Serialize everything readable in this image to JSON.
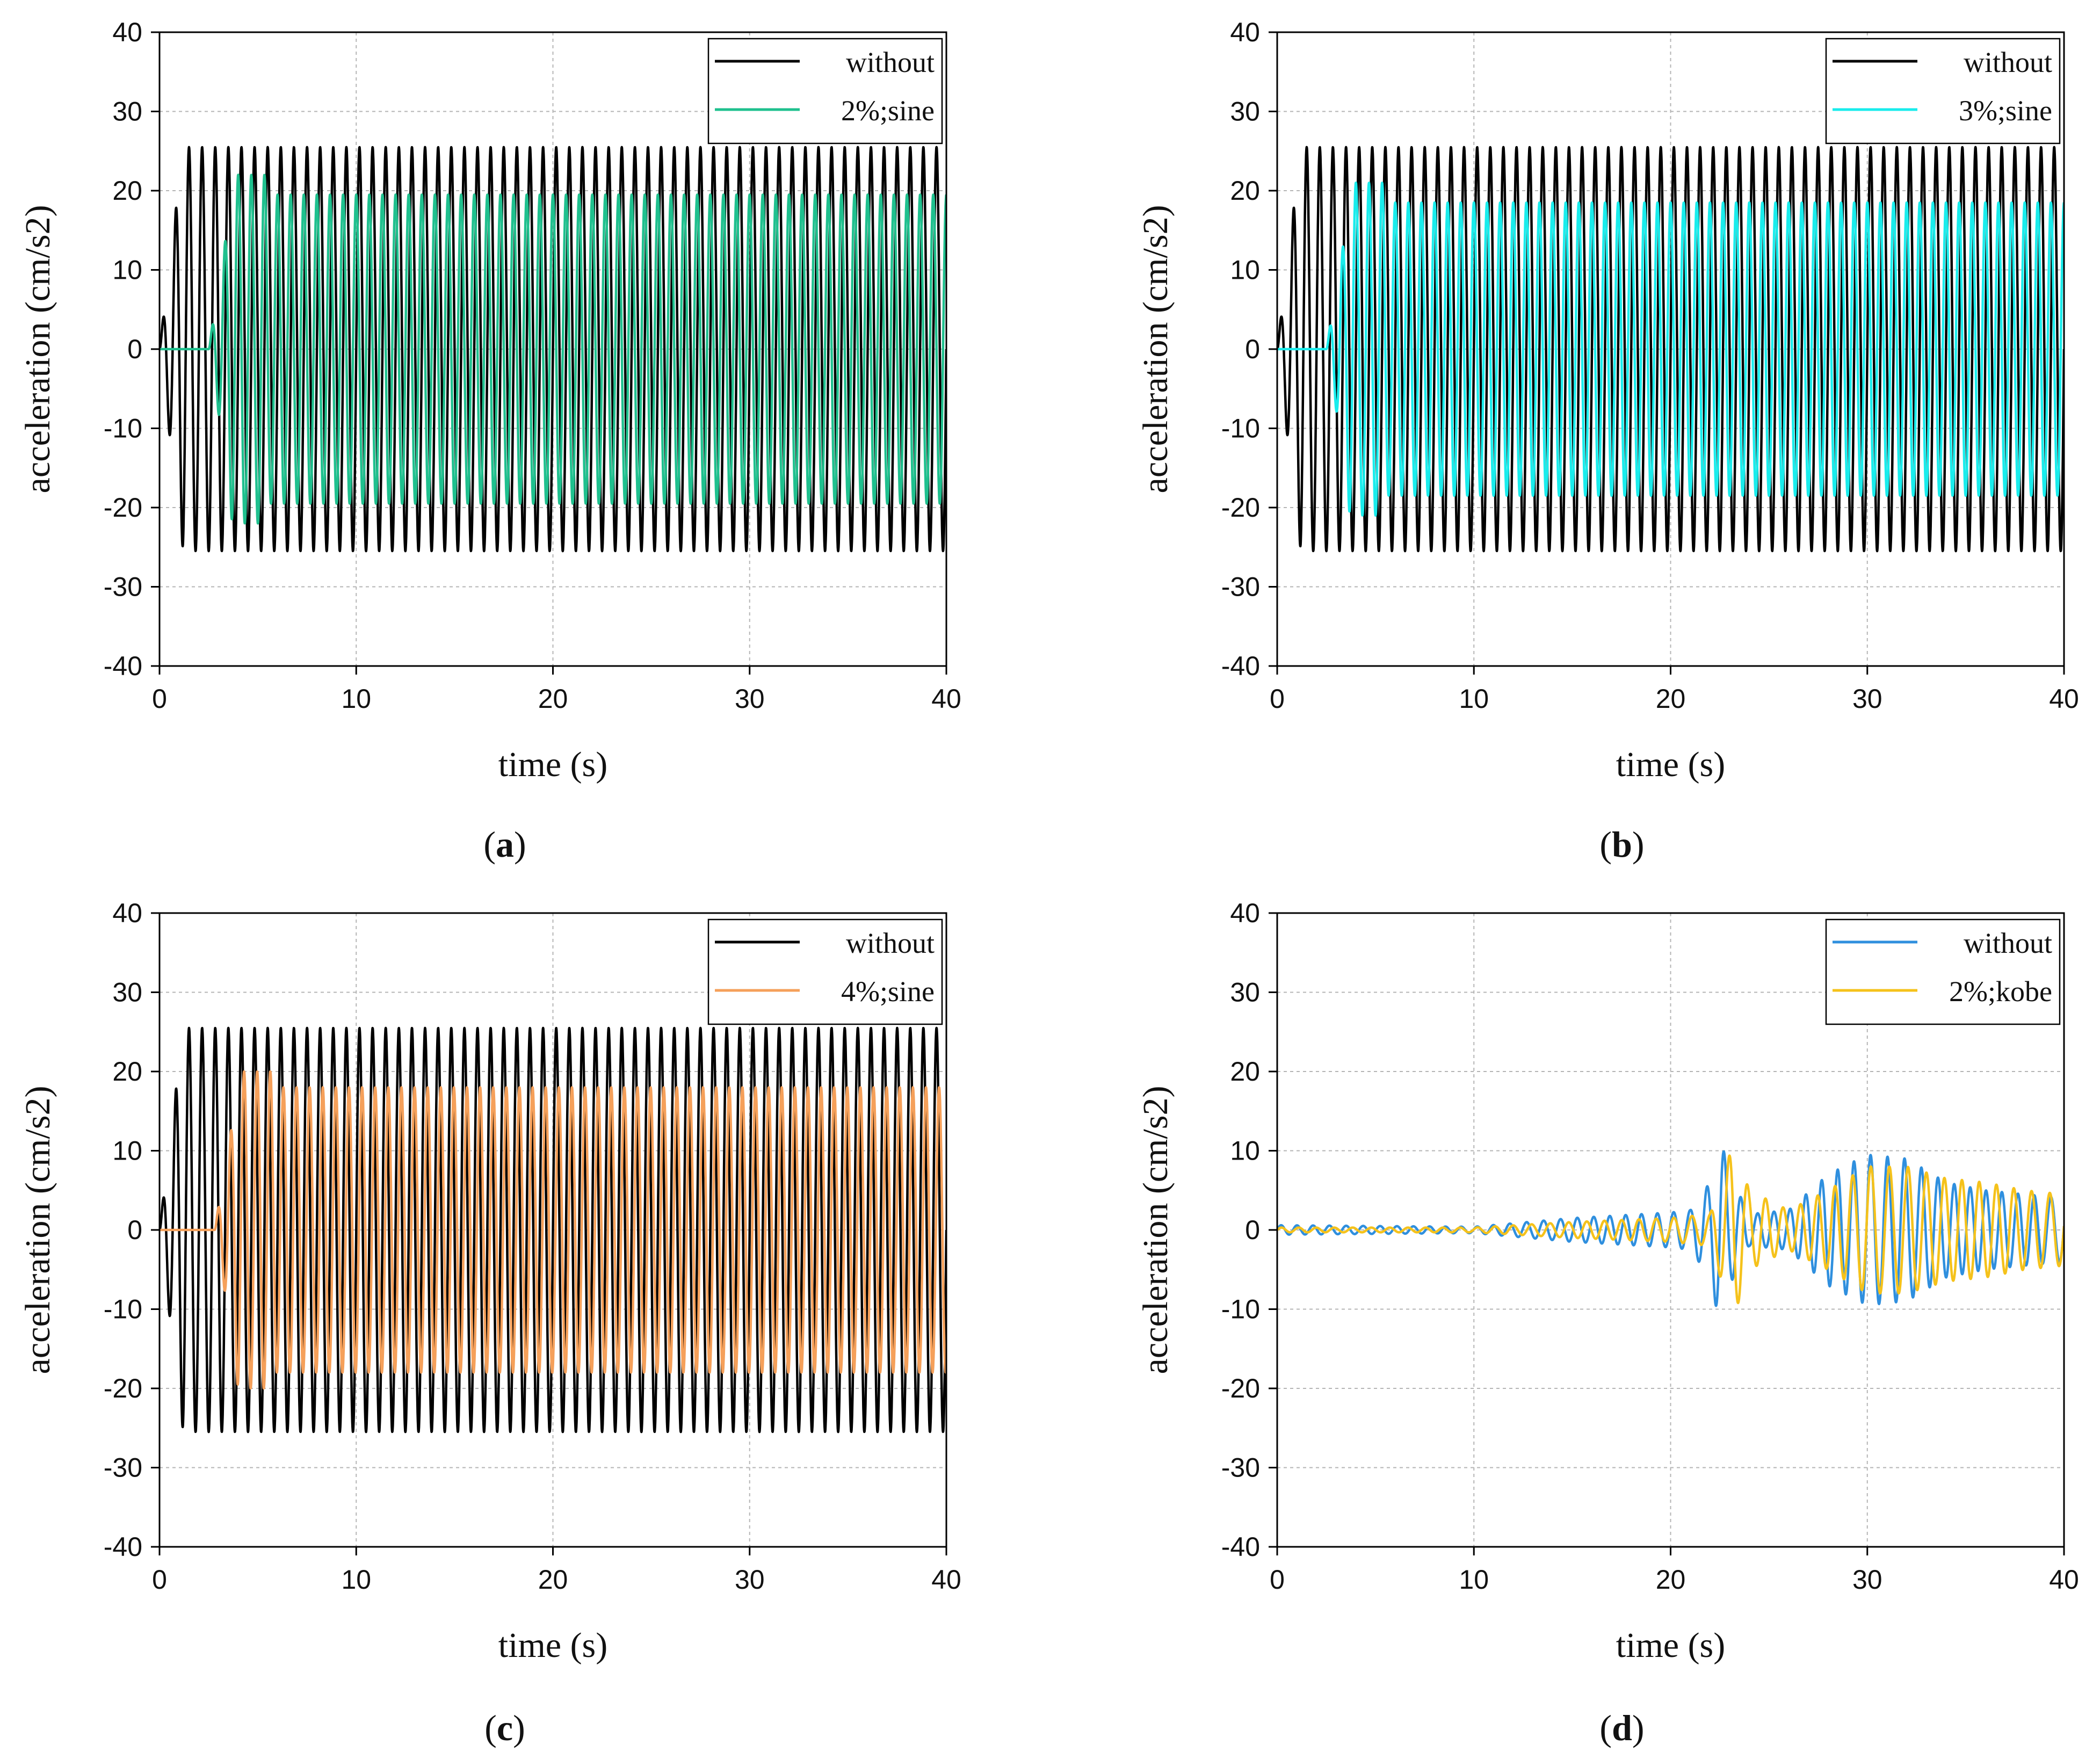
{
  "figure": {
    "colors": {
      "black": "#000000",
      "green": "#1fc08e",
      "cyan": "#19ecec",
      "orange": "#f5a05a",
      "blue": "#2f8fde",
      "yellow": "#f5c21b",
      "grid": "#b5b5b5"
    }
  },
  "chart_data": [
    {
      "id": "a",
      "type": "line",
      "panel_label": "a",
      "xlabel": "time (s)",
      "ylabel": "acceleration (cm/s2)",
      "xlim": [
        0,
        40
      ],
      "ylim": [
        -40,
        40
      ],
      "xticks": [
        0,
        10,
        20,
        30,
        40
      ],
      "yticks": [
        40,
        30,
        20,
        10,
        0,
        -10,
        -20,
        -30,
        -40
      ],
      "legend_position": "top-right",
      "grid": true,
      "series": [
        {
          "name": "without",
          "color": "#000000",
          "waveform": "sine",
          "amplitude": 25.5,
          "frequency_hz": 1.5,
          "onset_s": 0
        },
        {
          "name": "2%;sine",
          "color": "#1fc08e",
          "waveform": "sine",
          "amplitude": 19.5,
          "peak": 22,
          "frequency_hz": 1.5,
          "onset_s": 2.5
        }
      ]
    },
    {
      "id": "b",
      "type": "line",
      "panel_label": "b",
      "xlabel": "time (s)",
      "ylabel": "acceleration (cm/s2)",
      "xlim": [
        0,
        40
      ],
      "ylim": [
        -40,
        40
      ],
      "xticks": [
        0,
        10,
        20,
        30,
        40
      ],
      "yticks": [
        40,
        30,
        20,
        10,
        0,
        -10,
        -20,
        -30,
        -40
      ],
      "legend_position": "top-right",
      "grid": true,
      "series": [
        {
          "name": "without",
          "color": "#000000",
          "waveform": "sine",
          "amplitude": 25.5,
          "frequency_hz": 1.5,
          "onset_s": 0
        },
        {
          "name": "3%;sine",
          "color": "#19ecec",
          "waveform": "sine",
          "amplitude": 18.5,
          "peak": 21,
          "frequency_hz": 1.5,
          "onset_s": 2.5
        }
      ]
    },
    {
      "id": "c",
      "type": "line",
      "panel_label": "c",
      "xlabel": "time (s)",
      "ylabel": "acceleration (cm/s2)",
      "xlim": [
        0,
        40
      ],
      "ylim": [
        -40,
        40
      ],
      "xticks": [
        0,
        10,
        20,
        30,
        40
      ],
      "yticks": [
        40,
        30,
        20,
        10,
        0,
        -10,
        -20,
        -30,
        -40
      ],
      "legend_position": "top-right",
      "grid": true,
      "series": [
        {
          "name": "without",
          "color": "#000000",
          "waveform": "sine",
          "amplitude": 25.5,
          "frequency_hz": 1.5,
          "onset_s": 0
        },
        {
          "name": "4%;sine",
          "color": "#f5a05a",
          "waveform": "sine",
          "amplitude": 18,
          "peak": 20,
          "frequency_hz": 1.5,
          "onset_s": 2.8
        }
      ]
    },
    {
      "id": "d",
      "type": "line",
      "panel_label": "d",
      "xlabel": "time (s)",
      "ylabel": "acceleration (cm/s2)",
      "xlim": [
        0,
        40
      ],
      "ylim": [
        -40,
        40
      ],
      "xticks": [
        0,
        10,
        20,
        30,
        40
      ],
      "yticks": [
        40,
        30,
        20,
        10,
        0,
        -10,
        -20,
        -30,
        -40
      ],
      "legend_position": "top-right",
      "grid": true,
      "series": [
        {
          "name": "without",
          "color": "#2f8fde",
          "waveform": "kobe",
          "frequency_hz": 1.2,
          "envelope": [
            [
              0,
              0.6
            ],
            [
              10,
              0.4
            ],
            [
              15,
              1.5
            ],
            [
              20,
              2.2
            ],
            [
              21,
              2.5
            ],
            [
              22,
              6
            ],
            [
              22.5,
              12
            ],
            [
              23,
              7
            ],
            [
              24,
              2
            ],
            [
              26,
              2.5
            ],
            [
              28,
              7
            ],
            [
              30,
              9.5
            ],
            [
              32,
              9
            ],
            [
              34,
              6
            ],
            [
              36,
              5
            ],
            [
              38,
              4.5
            ],
            [
              40,
              4
            ]
          ]
        },
        {
          "name": "2%;kobe",
          "color": "#f5c21b",
          "waveform": "kobe",
          "frequency_hz": 1.1,
          "envelope": [
            [
              0,
              0.3
            ],
            [
              10,
              0.3
            ],
            [
              15,
              1.0
            ],
            [
              20,
              1.5
            ],
            [
              22,
              2
            ],
            [
              22.8,
              8
            ],
            [
              23.2,
              11
            ],
            [
              24,
              5
            ],
            [
              26,
              2.5
            ],
            [
              28,
              5
            ],
            [
              30,
              8
            ],
            [
              32,
              8
            ],
            [
              34,
              6.5
            ],
            [
              36,
              6
            ],
            [
              38,
              5
            ],
            [
              40,
              4.5
            ]
          ]
        }
      ]
    }
  ]
}
